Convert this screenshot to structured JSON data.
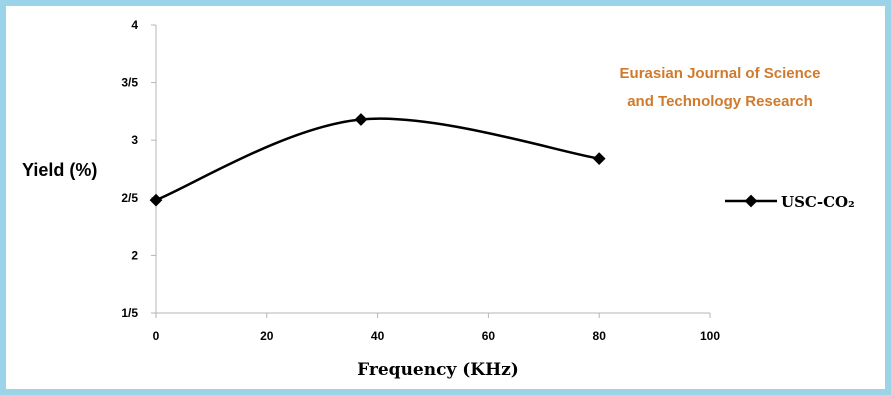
{
  "chart_data": {
    "type": "line",
    "xlabel": "Frequency (KHz)",
    "ylabel": "Yield (%)",
    "xlim": [
      0,
      100
    ],
    "ylim": [
      1.5,
      4
    ],
    "x_ticks": [
      0,
      20,
      40,
      60,
      80,
      100
    ],
    "x_tick_labels": [
      "0",
      "20",
      "40",
      "60",
      "80",
      "100"
    ],
    "y_ticks": [
      1.5,
      2,
      2.5,
      3,
      3.5,
      4
    ],
    "y_tick_labels": [
      "1/5",
      "2",
      "2/5",
      "3",
      "3/5",
      "4"
    ],
    "grid": false,
    "legend_position": "right",
    "series": [
      {
        "name": "USC-CO₂",
        "x": [
          0,
          37,
          80
        ],
        "y": [
          2.48,
          3.18,
          2.84
        ],
        "color": "#000000"
      }
    ]
  },
  "watermark": {
    "line1": "Eurasian Journal of Science",
    "line2": "and Technology Research",
    "color": "#d07a2c"
  },
  "frame_color": "#9bd3e8"
}
